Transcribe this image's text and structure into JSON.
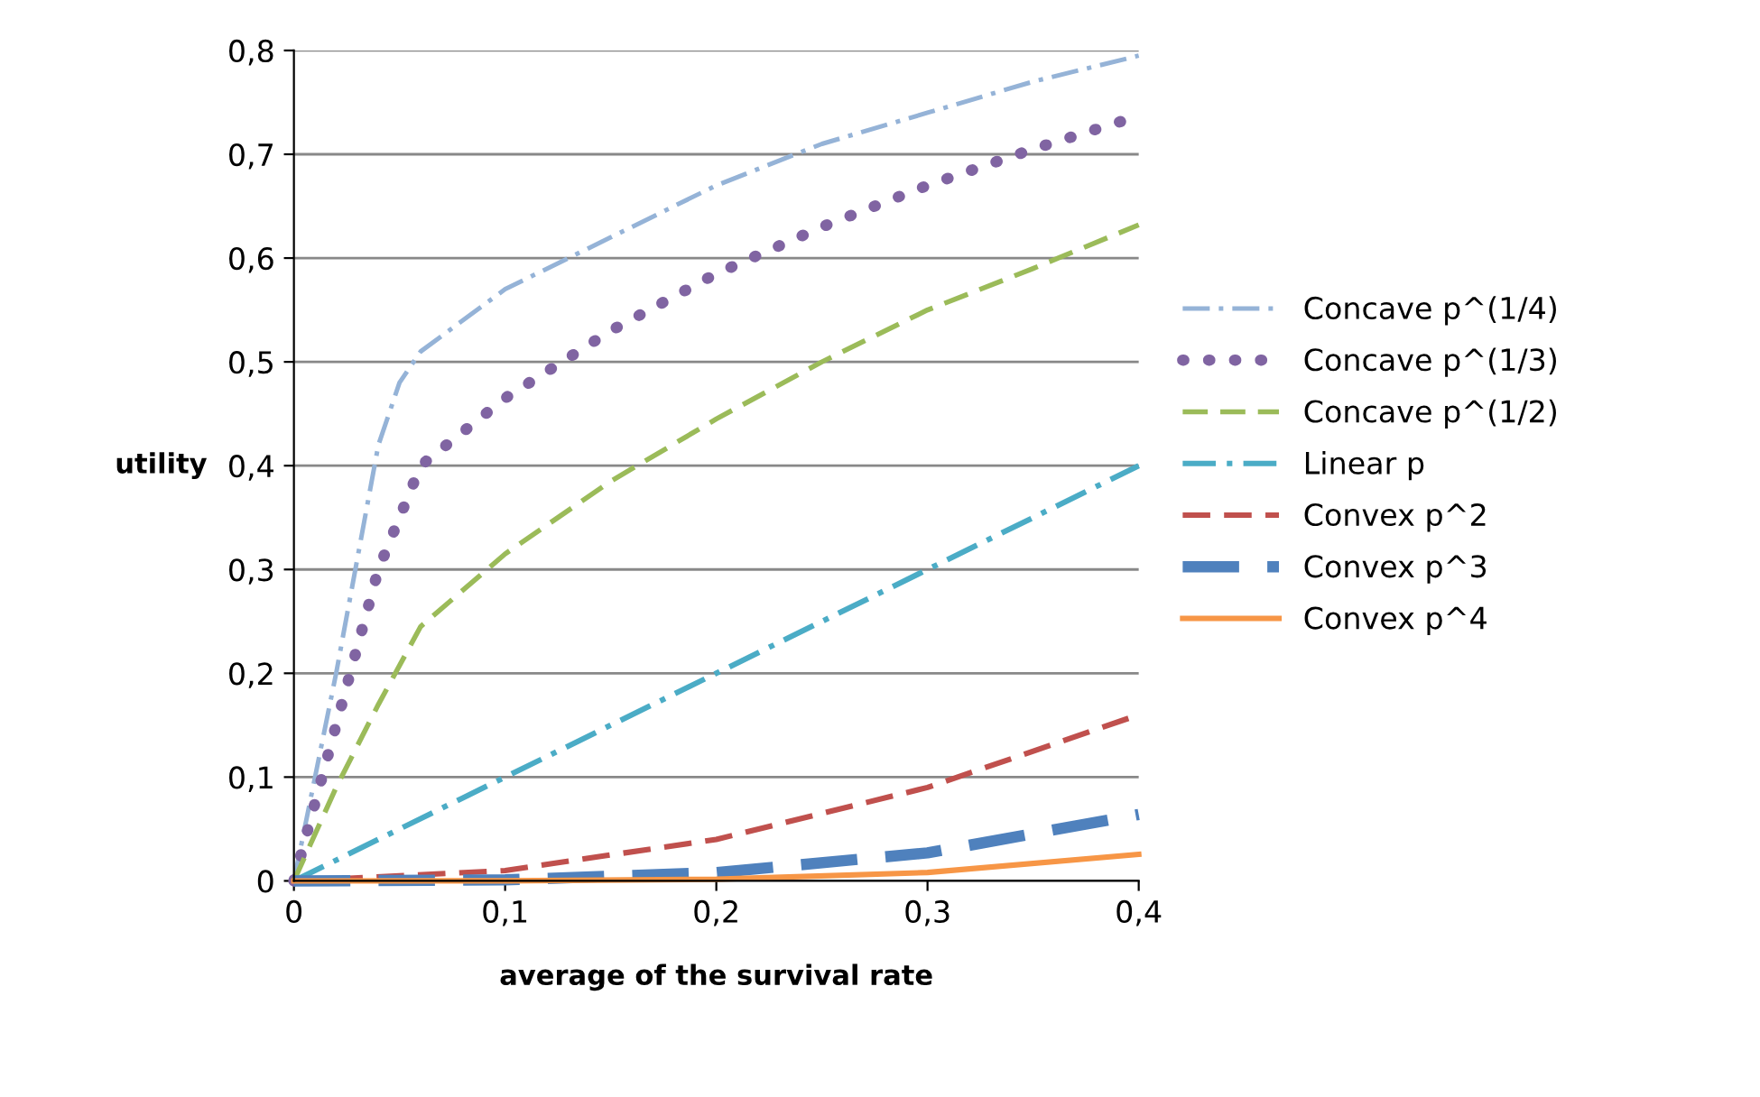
{
  "chart_data": {
    "type": "line",
    "xlabel": "average of the survival rate",
    "ylabel": "utility",
    "xlim": [
      0,
      0.4
    ],
    "ylim": [
      0,
      0.8
    ],
    "xticks": [
      0,
      {
        "value": 0.1,
        "label": "0,1"
      },
      {
        "value": 0.2,
        "label": "0,2"
      },
      {
        "value": 0.3,
        "label": "0,3"
      },
      {
        "value": 0.4,
        "label": "0,4"
      }
    ],
    "yticks": [
      0,
      {
        "value": 0.1,
        "label": "0,1"
      },
      {
        "value": 0.2,
        "label": "0,2"
      },
      {
        "value": 0.3,
        "label": "0,3"
      },
      {
        "value": 0.4,
        "label": "0,4"
      },
      {
        "value": 0.5,
        "label": "0,5"
      },
      {
        "value": 0.6,
        "label": "0,6"
      },
      {
        "value": 0.7,
        "label": "0,7"
      },
      {
        "value": 0.8,
        "label": "0,8"
      }
    ],
    "grid": "y",
    "legend": "right",
    "marker": "none",
    "series": [
      {
        "name": "Concave p^(1/4)",
        "color": "#95b3d7",
        "line_style": "dashdot",
        "x": [
          0,
          0.02,
          0.04,
          0.05,
          0.06,
          0.1,
          0.15,
          0.2,
          0.25,
          0.3,
          0.35,
          0.4
        ],
        "values": [
          0,
          0.2,
          0.42,
          0.48,
          0.51,
          0.57,
          0.62,
          0.67,
          0.71,
          0.74,
          0.77,
          0.795
        ]
      },
      {
        "name": "Concave p^(1/3)",
        "color": "#8064a2",
        "line_style": "dotted",
        "x": [
          0,
          0.02,
          0.04,
          0.06,
          0.1,
          0.15,
          0.2,
          0.25,
          0.3,
          0.35,
          0.4
        ],
        "values": [
          0,
          0.15,
          0.3,
          0.4,
          0.465,
          0.53,
          0.585,
          0.63,
          0.67,
          0.705,
          0.737
        ]
      },
      {
        "name": "Concave p^(1/2)",
        "color": "#9bbb59",
        "line_style": "dashed",
        "x": [
          0,
          0.02,
          0.04,
          0.06,
          0.1,
          0.15,
          0.2,
          0.25,
          0.3,
          0.35,
          0.4
        ],
        "values": [
          0,
          0.09,
          0.17,
          0.245,
          0.315,
          0.385,
          0.445,
          0.5,
          0.55,
          0.59,
          0.632
        ]
      },
      {
        "name": "Linear p",
        "color": "#4bacc6",
        "line_style": "dashdot",
        "x": [
          0,
          0.1,
          0.2,
          0.3,
          0.4
        ],
        "values": [
          0,
          0.1,
          0.2,
          0.3,
          0.4
        ]
      },
      {
        "name": "Convex p^2",
        "color": "#c0504d",
        "line_style": "dashed",
        "x": [
          0,
          0.1,
          0.2,
          0.3,
          0.4
        ],
        "values": [
          0,
          0.01,
          0.04,
          0.09,
          0.16
        ]
      },
      {
        "name": "Convex p^3",
        "color": "#4f81bd",
        "line_style": "dashed",
        "x": [
          0,
          0.1,
          0.2,
          0.3,
          0.4
        ],
        "values": [
          0,
          0.001,
          0.008,
          0.027,
          0.064
        ]
      },
      {
        "name": "Convex p^4",
        "color": "#f79646",
        "line_style": "solid",
        "x": [
          0,
          0.1,
          0.2,
          0.3,
          0.4
        ],
        "values": [
          0,
          0.0001,
          0.0016,
          0.0081,
          0.0256
        ]
      }
    ]
  }
}
